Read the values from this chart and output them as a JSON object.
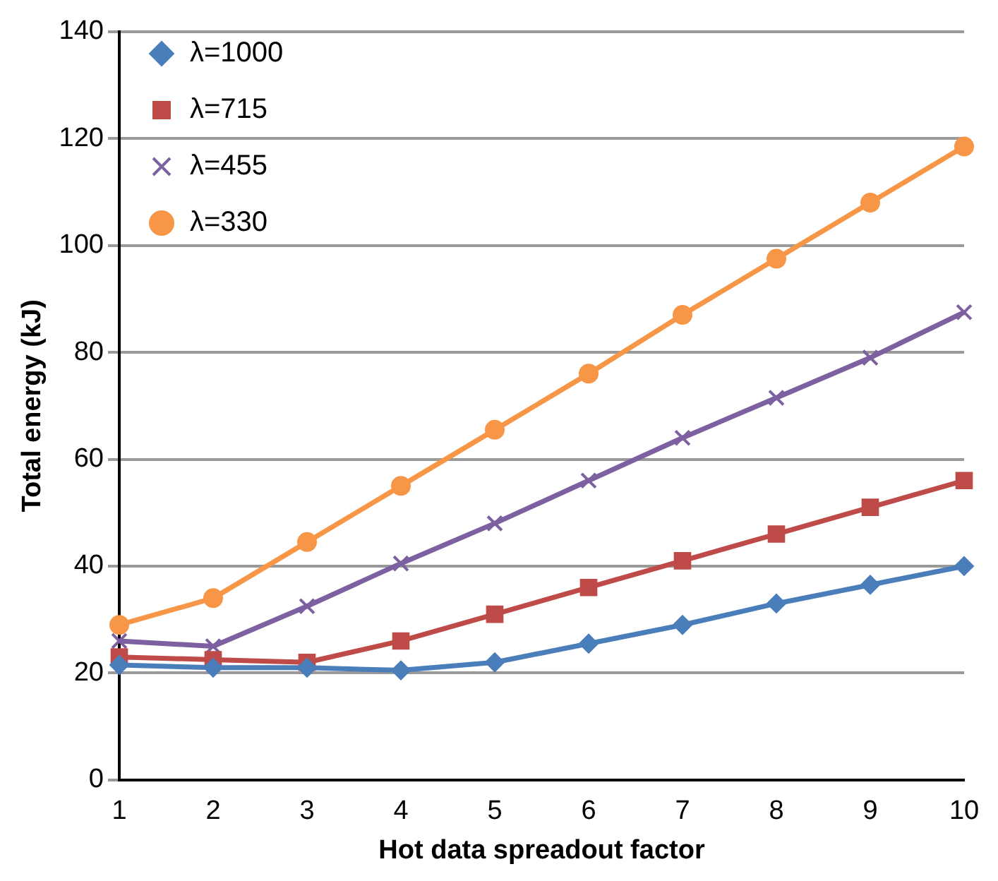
{
  "chart_data": {
    "type": "line",
    "xlabel": "Hot data spreadout factor",
    "ylabel": "Total energy (kJ)",
    "categories": [
      "1",
      "2",
      "3",
      "4",
      "5",
      "6",
      "7",
      "8",
      "9",
      "10"
    ],
    "series": [
      {
        "name": "λ=1000",
        "color": "#4a7ebb",
        "marker": "diamond",
        "values": [
          21.5,
          21,
          21,
          20.5,
          22,
          25.5,
          29,
          33,
          36.5,
          40
        ]
      },
      {
        "name": "λ=715",
        "color": "#be4b48",
        "marker": "square",
        "values": [
          23,
          22.5,
          22,
          26,
          31,
          36,
          41,
          46,
          51,
          56
        ]
      },
      {
        "name": "λ=455",
        "color": "#7d60a0",
        "marker": "cross",
        "values": [
          26,
          25,
          32.5,
          40.5,
          48,
          56,
          64,
          71.5,
          79,
          87.5
        ]
      },
      {
        "name": "λ=330",
        "color": "#f79646",
        "marker": "circle",
        "values": [
          29,
          34,
          44.5,
          55,
          65.5,
          76,
          87,
          97.5,
          108,
          118.5
        ]
      }
    ],
    "ylim": [
      0,
      140
    ],
    "yticks": [
      0,
      20,
      40,
      60,
      80,
      100,
      120,
      140
    ],
    "grid": "y",
    "legend": "top left",
    "line_style": "solid"
  }
}
